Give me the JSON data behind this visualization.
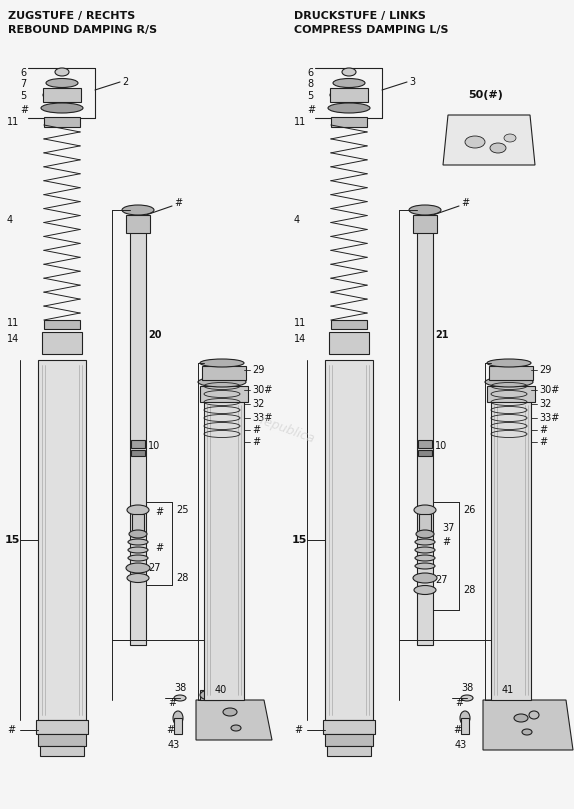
{
  "title_left1": "ZUGSTUFE / RECHTS",
  "title_left2": "REBOUND DAMPING R/S",
  "title_right1": "DRUCKSTUFE / LINKS",
  "title_right2": "COMPRESS DAMPING L/S",
  "bg_color": "#f5f5f5",
  "line_color": "#222222",
  "text_color": "#111111",
  "figsize": [
    5.74,
    8.09
  ],
  "dpi": 100
}
